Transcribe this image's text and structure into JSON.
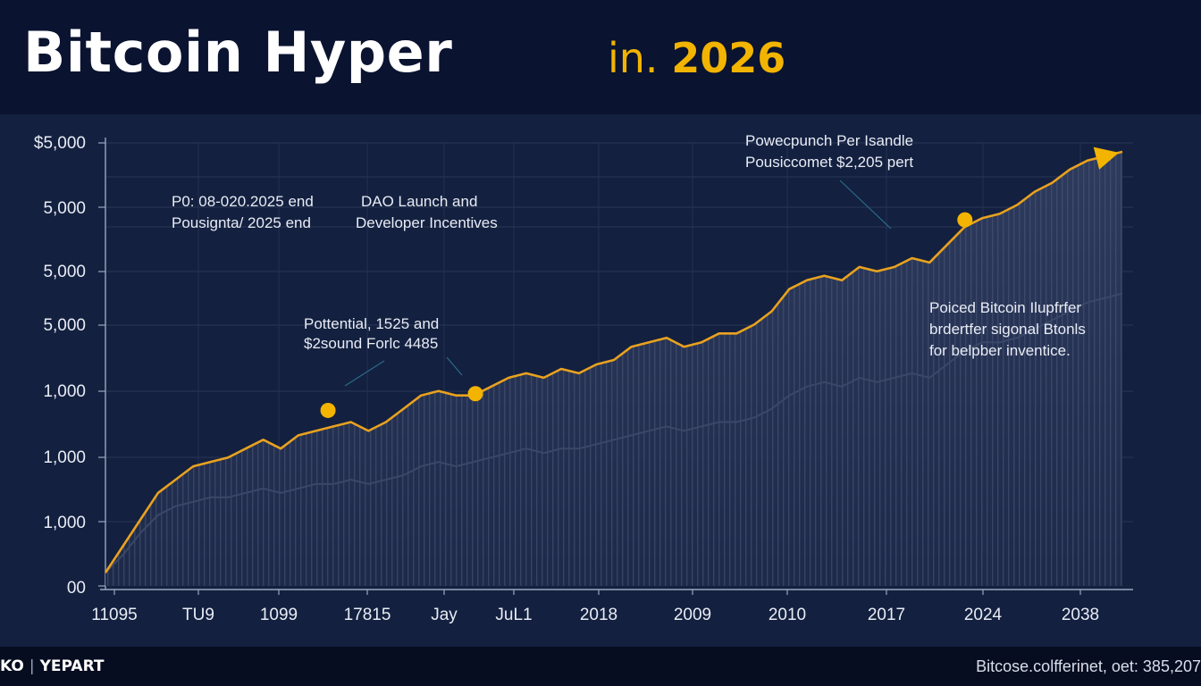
{
  "header": {
    "title": "Bitcoin Hyper",
    "subtitle_prefix": "in.",
    "subtitle_year": "2026"
  },
  "footer": {
    "brand_mark": "KO",
    "brand_name": "YEPART",
    "source": "Bitcose.colfferinet, oet: 385,207"
  },
  "chart_data": {
    "type": "line",
    "title": "Bitcoin Hyper",
    "xlabel": "",
    "ylabel": "",
    "grid": true,
    "y_tick_labels": [
      "$5,000",
      "5,000",
      "5,000",
      "5,000",
      "1,000",
      "1,000",
      "1,000",
      "00"
    ],
    "x_tick_labels": [
      "11095",
      "TU9",
      "1099",
      "17815",
      "Jay",
      "JuL1",
      "2018",
      "2009",
      "2010",
      "2017",
      "2024",
      "2038"
    ],
    "ylim": [
      0,
      100
    ],
    "series": [
      {
        "name": "",
        "color": "#e9a21f",
        "values": [
          3,
          9,
          15,
          21,
          24,
          27,
          28,
          29,
          31,
          33,
          31,
          34,
          35,
          36,
          37,
          35,
          37,
          40,
          43,
          44,
          43,
          43,
          45,
          47,
          48,
          47,
          49,
          48,
          50,
          51,
          54,
          55,
          56,
          54,
          55,
          57,
          57,
          59,
          62,
          67,
          69,
          70,
          69,
          72,
          71,
          72,
          74,
          73,
          77,
          81,
          83,
          84,
          86,
          89,
          91,
          94,
          96,
          97,
          98
        ]
      },
      {
        "name": "",
        "color": "#3a4868",
        "values": [
          3,
          7,
          12,
          16,
          18,
          19,
          20,
          20,
          21,
          22,
          21,
          22,
          23,
          23,
          24,
          23,
          24,
          25,
          27,
          28,
          27,
          28,
          29,
          30,
          31,
          30,
          31,
          31,
          32,
          33,
          34,
          35,
          36,
          35,
          36,
          37,
          37,
          38,
          40,
          43,
          45,
          46,
          45,
          47,
          46,
          47,
          48,
          47,
          50,
          53,
          55,
          55,
          56,
          58,
          60,
          62,
          64,
          65,
          66
        ]
      }
    ],
    "markers": [
      {
        "series": 0,
        "index": 13,
        "label": ""
      },
      {
        "series": 0,
        "index": 21,
        "label": ""
      },
      {
        "series": 0,
        "index": 48,
        "label": ""
      }
    ],
    "annotations": [
      {
        "line1": "P0: 08-020.2025 end",
        "line2": "Pousignta/ 2025 end"
      },
      {
        "line1": "DAO Launch and",
        "line2": "Developer Incentives"
      },
      {
        "line1": "Pottential, 1525 and",
        "line2": "$2sound  Forlc 4485"
      },
      {
        "line1": "Powecpunch Per Isandle",
        "line2": "Pousiccomet $2,205 pert"
      },
      {
        "line1": "Poiced Bitcoin Ilupfrfer",
        "line2": "brdertfer sigonal Btonls",
        "line3": "for belpber inventice."
      }
    ]
  }
}
